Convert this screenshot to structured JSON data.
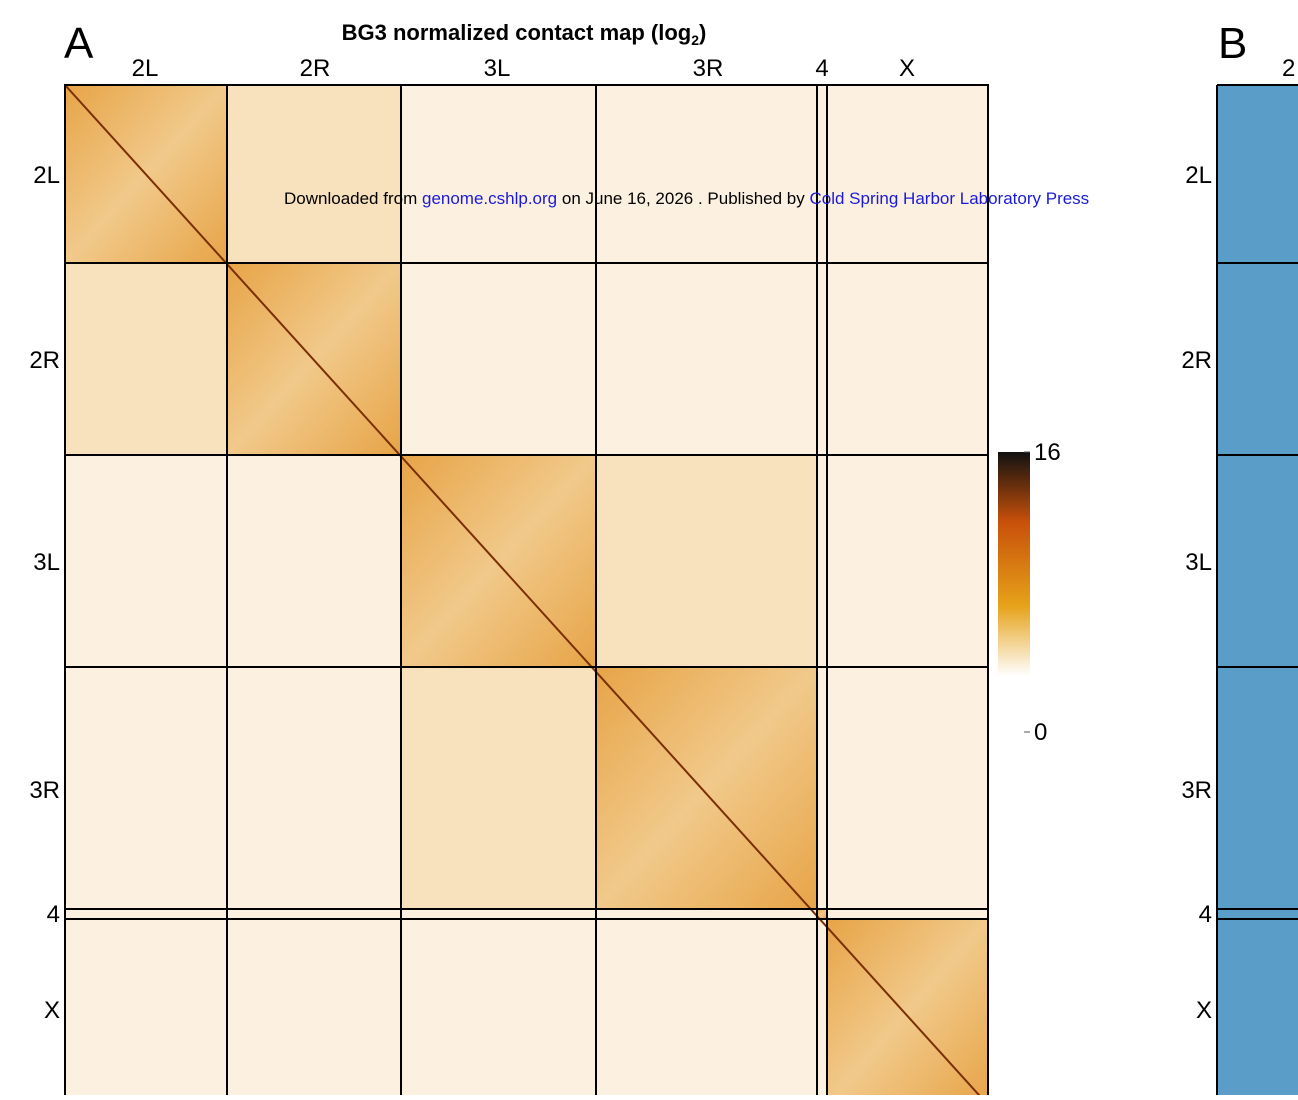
{
  "panel_a": {
    "label": "A",
    "title": {
      "text": "BG3 normalized contact map (log",
      "sub": "2",
      "close": ")"
    },
    "columns": [
      "2L",
      "2R",
      "3L",
      "3R",
      "4",
      "X"
    ],
    "rows": [
      "2L",
      "2R",
      "3L",
      "3R",
      "4",
      "X"
    ],
    "colorbar": {
      "ticks": [
        16,
        0
      ]
    }
  },
  "panel_b": {
    "label": "B",
    "column": "2",
    "rows": [
      "2L",
      "2R",
      "3L",
      "3R",
      "4",
      "X"
    ]
  },
  "banner": {
    "prefix": "Downloaded from",
    "site": "genome.cshlp.org",
    "middle": "on June 16, 2026 . Published by",
    "publisher": "Cold Spring Harbor Laboratory Press"
  }
}
